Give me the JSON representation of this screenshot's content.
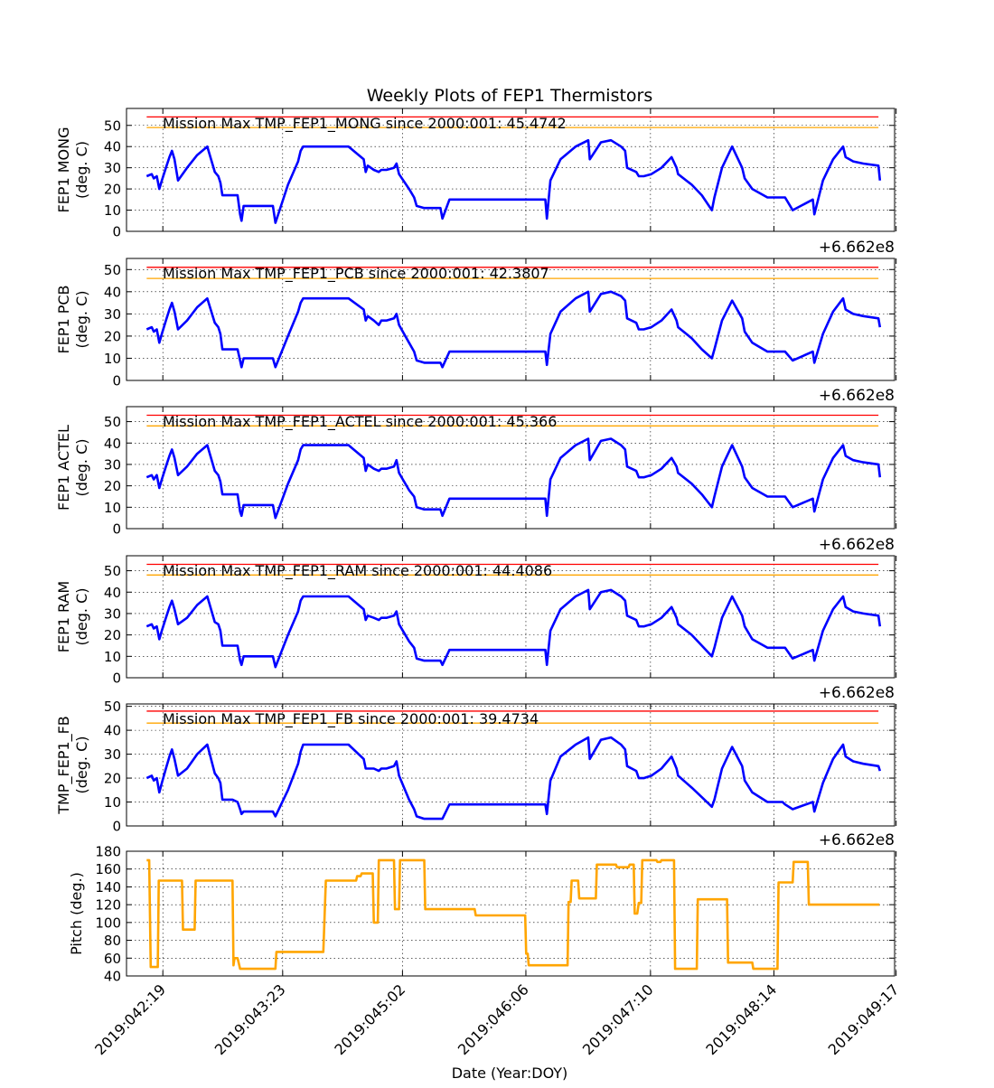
{
  "figure": {
    "title": "Weekly Plots of FEP1 Thermistors",
    "xlabel": "Date (Year:DOY)",
    "offset_text": "+6.662e8",
    "x_ticks": [
      "2019:042:19",
      "2019:043:23",
      "2019:045:02",
      "2019:046:06",
      "2019:047:10",
      "2019:048:14",
      "2019:049:17"
    ]
  },
  "chart_data": [
    {
      "type": "line",
      "panel_id": "mong",
      "ylabel": [
        "FEP1 MONG",
        "(deg. C)"
      ],
      "ylim": [
        0,
        58
      ],
      "yticks": [
        0,
        10,
        20,
        30,
        40,
        50
      ],
      "grid": true,
      "annotation": "Mission Max TMP_FEP1_MONG since 2000:001: 45.4742",
      "limit_lines": [
        {
          "value": 54,
          "color": "#ff0000"
        },
        {
          "value": 49,
          "color": "#ffa500"
        }
      ],
      "x": [
        0,
        0.1,
        0.14,
        0.2,
        0.25,
        0.3,
        0.38,
        0.45,
        0.5,
        0.55,
        0.62,
        0.8,
        1.0,
        1.2,
        1.35,
        1.42,
        1.46,
        1.5,
        1.55,
        1.6,
        1.7,
        1.8,
        1.85,
        1.88,
        1.92,
        1.95,
        2.0,
        2.05,
        2.1,
        2.4,
        2.5,
        2.55,
        2.8,
        3.0,
        3.05,
        3.1,
        3.25,
        3.5,
        3.8,
        4.0,
        4.3,
        4.34,
        4.38,
        4.5,
        4.6,
        4.65,
        4.75,
        4.9,
        4.95,
        5.0,
        5.2,
        5.3,
        5.35,
        5.5,
        5.7,
        5.82,
        5.86,
        6.0,
        6.2,
        6.3,
        6.55,
        6.58,
        6.7,
        6.9,
        7.5,
        7.9,
        7.93,
        8.0,
        8.2,
        8.5,
        8.75,
        8.78,
        9.0,
        9.2,
        9.4,
        9.48,
        9.52,
        9.7,
        9.75,
        9.8,
        9.85,
        10.0,
        10.2,
        10.4,
        10.5,
        10.53,
        10.8,
        11.0,
        11.2,
        11.25,
        11.4,
        11.6,
        11.8,
        11.85,
        12.0,
        12.3,
        12.6,
        12.65,
        12.8,
        13.2,
        13.23,
        13.4,
        13.6,
        13.8,
        13.85,
        14.0,
        14.2,
        14.5,
        14.53
      ],
      "values": [
        26,
        27,
        25,
        26,
        20,
        24,
        30,
        35,
        38,
        34,
        24,
        30,
        36,
        40,
        28,
        26,
        23,
        17,
        17,
        17,
        17,
        17,
        8,
        5,
        12,
        12,
        12,
        12,
        12,
        12,
        12,
        4,
        22,
        33,
        38,
        40,
        40,
        40,
        40,
        40,
        34,
        28,
        31,
        29,
        28,
        29,
        29,
        30,
        32,
        27,
        20,
        16,
        12,
        11,
        11,
        11,
        6,
        15,
        15,
        15,
        15,
        15,
        15,
        15,
        15,
        15,
        6,
        24,
        34,
        40,
        43,
        34,
        42,
        43,
        40,
        38,
        30,
        28,
        26,
        26,
        26,
        27,
        30,
        35,
        30,
        27,
        22,
        17,
        10,
        16,
        30,
        40,
        30,
        25,
        20,
        16,
        16,
        16,
        10,
        15,
        8,
        24,
        34,
        40,
        35,
        33,
        32,
        31,
        24
      ]
    },
    {
      "type": "line",
      "panel_id": "pcb",
      "ylabel": [
        "FEP1 PCB",
        "(deg. C)"
      ],
      "ylim": [
        0,
        55
      ],
      "yticks": [
        0,
        10,
        20,
        30,
        40,
        50
      ],
      "grid": true,
      "annotation": "Mission Max TMP_FEP1_PCB since 2000:001: 42.3807",
      "limit_lines": [
        {
          "value": 51,
          "color": "#ff0000"
        },
        {
          "value": 46,
          "color": "#ffa500"
        }
      ],
      "x": [
        0,
        0.1,
        0.14,
        0.2,
        0.25,
        0.3,
        0.38,
        0.45,
        0.5,
        0.55,
        0.62,
        0.8,
        1.0,
        1.2,
        1.35,
        1.42,
        1.46,
        1.5,
        1.55,
        1.6,
        1.7,
        1.8,
        1.85,
        1.88,
        1.92,
        1.95,
        2.0,
        2.05,
        2.1,
        2.4,
        2.5,
        2.55,
        2.8,
        3.0,
        3.05,
        3.1,
        3.25,
        3.5,
        3.8,
        4.0,
        4.3,
        4.34,
        4.38,
        4.5,
        4.6,
        4.65,
        4.75,
        4.9,
        4.95,
        5.0,
        5.2,
        5.3,
        5.35,
        5.5,
        5.7,
        5.82,
        5.86,
        6.0,
        6.2,
        6.3,
        6.55,
        6.58,
        6.7,
        6.9,
        7.5,
        7.9,
        7.93,
        8.0,
        8.2,
        8.5,
        8.75,
        8.78,
        9.0,
        9.2,
        9.4,
        9.48,
        9.52,
        9.7,
        9.75,
        9.8,
        9.85,
        10.0,
        10.2,
        10.4,
        10.5,
        10.53,
        10.8,
        11.0,
        11.2,
        11.25,
        11.4,
        11.6,
        11.8,
        11.85,
        12.0,
        12.3,
        12.6,
        12.65,
        12.8,
        13.2,
        13.23,
        13.4,
        13.6,
        13.8,
        13.85,
        14.0,
        14.2,
        14.5,
        14.53
      ],
      "values": [
        23,
        24,
        22,
        23,
        17,
        21,
        27,
        32,
        35,
        31,
        23,
        27,
        33,
        37,
        26,
        24,
        21,
        14,
        14,
        14,
        14,
        14,
        9,
        6,
        10,
        10,
        10,
        10,
        10,
        10,
        10,
        6,
        20,
        31,
        35,
        37,
        37,
        37,
        37,
        37,
        32,
        27,
        29,
        27,
        25,
        27,
        27,
        28,
        30,
        25,
        17,
        13,
        9,
        8,
        8,
        8,
        6,
        13,
        13,
        13,
        13,
        13,
        13,
        13,
        13,
        13,
        7,
        21,
        31,
        37,
        40,
        31,
        39,
        40,
        38,
        36,
        28,
        26,
        23,
        23,
        23,
        24,
        27,
        32,
        27,
        24,
        19,
        14,
        10,
        14,
        27,
        36,
        28,
        22,
        17,
        13,
        13,
        13,
        9,
        13,
        8,
        21,
        31,
        37,
        32,
        30,
        29,
        28,
        24
      ]
    },
    {
      "type": "line",
      "panel_id": "actel",
      "ylabel": [
        "FEP1 ACTEL",
        "(deg. C)"
      ],
      "ylim": [
        0,
        57
      ],
      "yticks": [
        0,
        10,
        20,
        30,
        40,
        50
      ],
      "grid": true,
      "annotation": "Mission Max TMP_FEP1_ACTEL since 2000:001: 45.366",
      "limit_lines": [
        {
          "value": 53,
          "color": "#ff0000"
        },
        {
          "value": 48,
          "color": "#ffa500"
        }
      ],
      "x": [
        0,
        0.1,
        0.14,
        0.2,
        0.25,
        0.3,
        0.38,
        0.45,
        0.5,
        0.55,
        0.62,
        0.8,
        1.0,
        1.2,
        1.35,
        1.42,
        1.46,
        1.5,
        1.55,
        1.6,
        1.7,
        1.8,
        1.85,
        1.88,
        1.92,
        1.95,
        2.0,
        2.05,
        2.1,
        2.4,
        2.5,
        2.55,
        2.8,
        3.0,
        3.05,
        3.1,
        3.25,
        3.5,
        3.8,
        4.0,
        4.3,
        4.34,
        4.38,
        4.5,
        4.6,
        4.65,
        4.75,
        4.9,
        4.95,
        5.0,
        5.2,
        5.3,
        5.35,
        5.5,
        5.7,
        5.82,
        5.86,
        6.0,
        6.2,
        6.3,
        6.55,
        6.58,
        6.7,
        6.9,
        7.5,
        7.9,
        7.93,
        8.0,
        8.2,
        8.5,
        8.75,
        8.78,
        9.0,
        9.2,
        9.4,
        9.48,
        9.52,
        9.7,
        9.75,
        9.8,
        9.85,
        10.0,
        10.2,
        10.4,
        10.5,
        10.53,
        10.8,
        11.0,
        11.2,
        11.25,
        11.4,
        11.6,
        11.8,
        11.85,
        12.0,
        12.3,
        12.6,
        12.65,
        12.8,
        13.2,
        13.23,
        13.4,
        13.6,
        13.8,
        13.85,
        14.0,
        14.2,
        14.5,
        14.53
      ],
      "values": [
        24,
        25,
        23,
        25,
        19,
        23,
        29,
        34,
        37,
        33,
        25,
        29,
        35,
        39,
        27,
        25,
        22,
        16,
        16,
        16,
        16,
        16,
        8,
        6,
        11,
        11,
        11,
        11,
        11,
        11,
        11,
        5,
        21,
        32,
        37,
        39,
        39,
        39,
        39,
        39,
        33,
        27,
        30,
        28,
        27,
        28,
        28,
        29,
        32,
        26,
        18,
        15,
        10,
        9,
        9,
        9,
        6,
        14,
        14,
        14,
        14,
        14,
        14,
        14,
        14,
        14,
        6,
        23,
        33,
        39,
        42,
        32,
        41,
        42,
        39,
        37,
        29,
        27,
        24,
        24,
        24,
        25,
        28,
        33,
        29,
        26,
        21,
        16,
        10,
        15,
        29,
        39,
        29,
        24,
        19,
        15,
        15,
        15,
        10,
        14,
        8,
        23,
        33,
        39,
        34,
        32,
        31,
        30,
        24
      ]
    },
    {
      "type": "line",
      "panel_id": "ram",
      "ylabel": [
        "FEP1 RAM",
        "(deg. C)"
      ],
      "ylim": [
        0,
        57
      ],
      "yticks": [
        0,
        10,
        20,
        30,
        40,
        50
      ],
      "grid": true,
      "annotation": "Mission Max TMP_FEP1_RAM since 2000:001: 44.4086",
      "limit_lines": [
        {
          "value": 53,
          "color": "#ff0000"
        },
        {
          "value": 48,
          "color": "#ffa500"
        }
      ],
      "x": [
        0,
        0.1,
        0.14,
        0.2,
        0.25,
        0.3,
        0.38,
        0.45,
        0.5,
        0.55,
        0.62,
        0.8,
        1.0,
        1.2,
        1.35,
        1.42,
        1.46,
        1.5,
        1.55,
        1.6,
        1.7,
        1.8,
        1.85,
        1.88,
        1.92,
        1.95,
        2.0,
        2.05,
        2.1,
        2.4,
        2.5,
        2.55,
        2.8,
        3.0,
        3.05,
        3.1,
        3.25,
        3.5,
        3.8,
        4.0,
        4.3,
        4.34,
        4.38,
        4.5,
        4.6,
        4.65,
        4.75,
        4.9,
        4.95,
        5.0,
        5.2,
        5.3,
        5.35,
        5.5,
        5.7,
        5.82,
        5.86,
        6.0,
        6.2,
        6.3,
        6.55,
        6.58,
        6.7,
        6.9,
        7.5,
        7.9,
        7.93,
        8.0,
        8.2,
        8.5,
        8.75,
        8.78,
        9.0,
        9.2,
        9.4,
        9.48,
        9.52,
        9.7,
        9.75,
        9.8,
        9.85,
        10.0,
        10.2,
        10.4,
        10.5,
        10.53,
        10.8,
        11.0,
        11.2,
        11.25,
        11.4,
        11.6,
        11.8,
        11.85,
        12.0,
        12.3,
        12.6,
        12.65,
        12.8,
        13.2,
        13.23,
        13.4,
        13.6,
        13.8,
        13.85,
        14.0,
        14.2,
        14.5,
        14.53
      ],
      "values": [
        24,
        25,
        23,
        24,
        18,
        22,
        28,
        33,
        36,
        32,
        25,
        28,
        34,
        38,
        26,
        25,
        22,
        15,
        15,
        15,
        15,
        15,
        8,
        6,
        10,
        10,
        10,
        10,
        10,
        10,
        10,
        5,
        20,
        31,
        36,
        38,
        38,
        38,
        38,
        38,
        32,
        27,
        29,
        28,
        27,
        28,
        28,
        29,
        31,
        25,
        17,
        14,
        9,
        8,
        8,
        8,
        6,
        13,
        13,
        13,
        13,
        13,
        13,
        13,
        13,
        13,
        6,
        22,
        32,
        38,
        41,
        32,
        40,
        41,
        38,
        36,
        29,
        27,
        24,
        24,
        24,
        25,
        28,
        33,
        28,
        25,
        20,
        15,
        10,
        14,
        28,
        38,
        29,
        24,
        18,
        14,
        14,
        14,
        9,
        13,
        8,
        22,
        32,
        38,
        33,
        31,
        30,
        29,
        24
      ]
    },
    {
      "type": "line",
      "panel_id": "fb",
      "ylabel": [
        "TMP_FEP1_FB",
        "(deg. C)"
      ],
      "ylim": [
        0,
        51
      ],
      "yticks": [
        0,
        10,
        20,
        30,
        40,
        50
      ],
      "grid": true,
      "annotation": "Mission Max TMP_FEP1_FB since 2000:001: 39.4734",
      "limit_lines": [
        {
          "value": 48,
          "color": "#ff0000"
        },
        {
          "value": 43,
          "color": "#ffa500"
        }
      ],
      "x": [
        0,
        0.1,
        0.14,
        0.2,
        0.25,
        0.3,
        0.38,
        0.45,
        0.5,
        0.55,
        0.62,
        0.8,
        1.0,
        1.2,
        1.35,
        1.42,
        1.46,
        1.5,
        1.55,
        1.6,
        1.7,
        1.8,
        1.85,
        1.88,
        1.92,
        1.95,
        2.0,
        2.05,
        2.1,
        2.4,
        2.5,
        2.55,
        2.8,
        3.0,
        3.05,
        3.1,
        3.25,
        3.5,
        3.8,
        4.0,
        4.3,
        4.34,
        4.38,
        4.5,
        4.6,
        4.65,
        4.75,
        4.9,
        4.95,
        5.0,
        5.2,
        5.3,
        5.35,
        5.5,
        5.7,
        5.82,
        5.86,
        6.0,
        6.2,
        6.3,
        6.55,
        6.58,
        6.7,
        6.9,
        7.5,
        7.9,
        7.93,
        8.0,
        8.2,
        8.5,
        8.75,
        8.78,
        9.0,
        9.2,
        9.4,
        9.48,
        9.52,
        9.7,
        9.75,
        9.8,
        9.85,
        10.0,
        10.2,
        10.4,
        10.5,
        10.53,
        10.8,
        11.0,
        11.2,
        11.25,
        11.4,
        11.6,
        11.8,
        11.85,
        12.0,
        12.3,
        12.6,
        12.65,
        12.8,
        13.2,
        13.23,
        13.4,
        13.6,
        13.8,
        13.85,
        14.0,
        14.2,
        14.5,
        14.53
      ],
      "values": [
        20,
        21,
        19,
        20,
        14,
        18,
        24,
        29,
        32,
        28,
        21,
        24,
        30,
        34,
        22,
        20,
        18,
        11,
        11,
        11,
        11,
        10,
        7,
        5,
        6,
        6,
        6,
        6,
        6,
        6,
        6,
        4,
        15,
        26,
        31,
        34,
        34,
        34,
        34,
        34,
        28,
        24,
        24,
        24,
        23,
        24,
        24,
        25,
        27,
        21,
        11,
        7,
        4,
        3,
        3,
        3,
        3,
        9,
        9,
        9,
        9,
        9,
        9,
        9,
        9,
        9,
        5,
        19,
        29,
        34,
        37,
        28,
        36,
        37,
        34,
        32,
        25,
        23,
        20,
        20,
        20,
        21,
        24,
        29,
        24,
        21,
        16,
        12,
        8,
        11,
        24,
        33,
        25,
        19,
        14,
        10,
        10,
        9,
        7,
        10,
        6,
        18,
        28,
        34,
        29,
        27,
        26,
        25,
        23
      ]
    },
    {
      "type": "line",
      "panel_id": "pitch",
      "ylabel": [
        "Pitch (deg.)"
      ],
      "ylim": [
        40,
        180
      ],
      "yticks": [
        40,
        60,
        80,
        100,
        120,
        140,
        160,
        180
      ],
      "grid": true,
      "series_color": "#ffa500",
      "x": [
        0,
        0.05,
        0.08,
        0.22,
        0.24,
        0.7,
        0.72,
        0.95,
        0.97,
        1.7,
        1.72,
        1.74,
        1.8,
        1.85,
        2.1,
        2.12,
        2.55,
        2.57,
        3.5,
        3.55,
        4.15,
        4.17,
        4.24,
        4.26,
        4.48,
        4.5,
        4.58,
        4.6,
        4.9,
        4.92,
        5.0,
        5.02,
        5.18,
        5.2,
        5.5,
        5.52,
        6.5,
        6.52,
        7.5,
        7.52,
        7.55,
        7.57,
        7.6,
        7.62,
        8.1,
        8.12,
        8.34,
        8.36,
        8.4,
        8.42,
        8.55,
        8.57,
        8.9,
        8.92,
        9.3,
        9.32,
        9.55,
        9.57,
        9.65,
        9.67,
        9.72,
        9.75,
        9.8,
        9.82,
        10.1,
        10.12,
        10.18,
        10.2,
        10.45,
        10.47,
        10.9,
        10.92,
        11.5,
        11.52,
        12.0,
        12.02,
        12.5,
        12.52,
        12.8,
        12.82,
        13.1,
        13.12,
        13.5,
        13.52,
        13.6,
        13.62,
        14.0,
        14.02,
        14.2,
        14.22,
        14.5,
        14.52
      ],
      "values": [
        170,
        170,
        50,
        50,
        147,
        147,
        92,
        92,
        147,
        147,
        52,
        60,
        60,
        48,
        48,
        48,
        48,
        67,
        67,
        147,
        147,
        152,
        152,
        155,
        155,
        100,
        100,
        170,
        170,
        115,
        115,
        170,
        170,
        170,
        170,
        115,
        115,
        108,
        108,
        65,
        65,
        52,
        52,
        52,
        52,
        52,
        52,
        123,
        123,
        147,
        147,
        127,
        127,
        165,
        165,
        162,
        162,
        165,
        165,
        110,
        110,
        122,
        122,
        170,
        170,
        168,
        168,
        170,
        170,
        48,
        48,
        126,
        126,
        55,
        55,
        48,
        48,
        145,
        145,
        168,
        168,
        120,
        120,
        120,
        120,
        120,
        120,
        120,
        120,
        120,
        120,
        120
      ]
    }
  ]
}
